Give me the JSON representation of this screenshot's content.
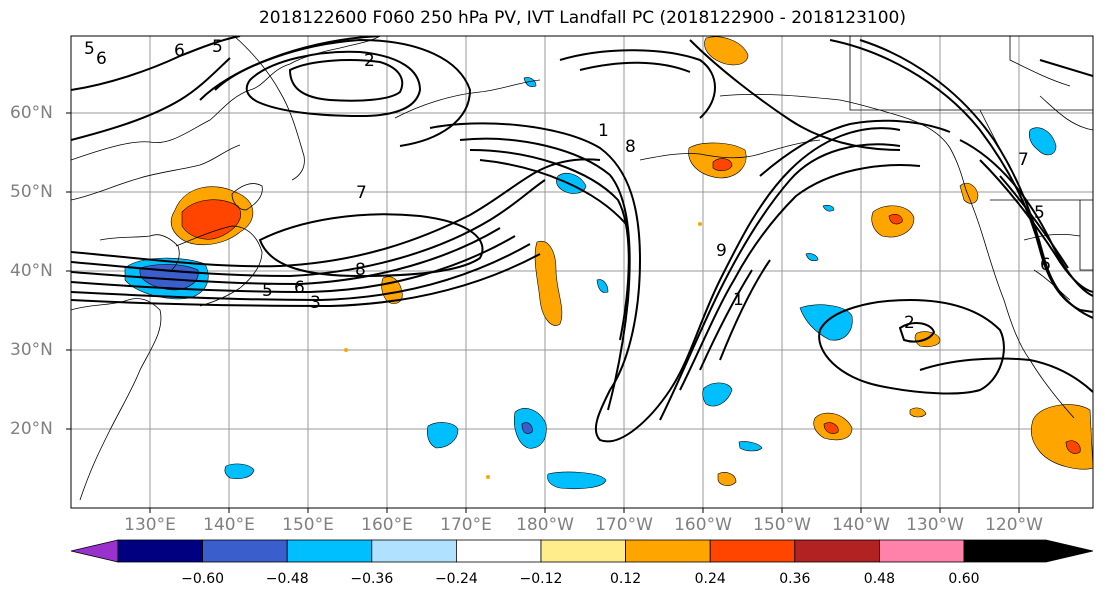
{
  "title": "2018122600 F060 250 hPa PV, IVT Landfall PC (2018122900 - 2018123100)",
  "latitude_labels": [
    "60°N",
    "50°N",
    "40°N",
    "30°N",
    "20°N"
  ],
  "longitude_labels": [
    "130°E",
    "140°E",
    "150°E",
    "160°E",
    "170°E",
    "180°W",
    "170°W",
    "160°W",
    "150°W",
    "140°W",
    "130°W",
    "120°W"
  ],
  "contour_labels": [
    "5",
    "6",
    "6",
    "5",
    "2",
    "7",
    "8",
    "5",
    "6",
    "3",
    "1",
    "8",
    "9",
    "1",
    "7",
    "5",
    "6",
    "2"
  ],
  "colorbar": {
    "tick_labels": [
      "−0.60",
      "−0.48",
      "−0.36",
      "−0.24",
      "−0.12",
      "0.12",
      "0.24",
      "0.36",
      "0.48",
      "0.60"
    ],
    "colors": [
      "#9932cc",
      "#000080",
      "#3a5fcd",
      "#00bfff",
      "#b0e2ff",
      "#ffffff",
      "#ffec8b",
      "#ffa500",
      "#ff4500",
      "#b22222",
      "#ff82ab"
    ]
  }
}
